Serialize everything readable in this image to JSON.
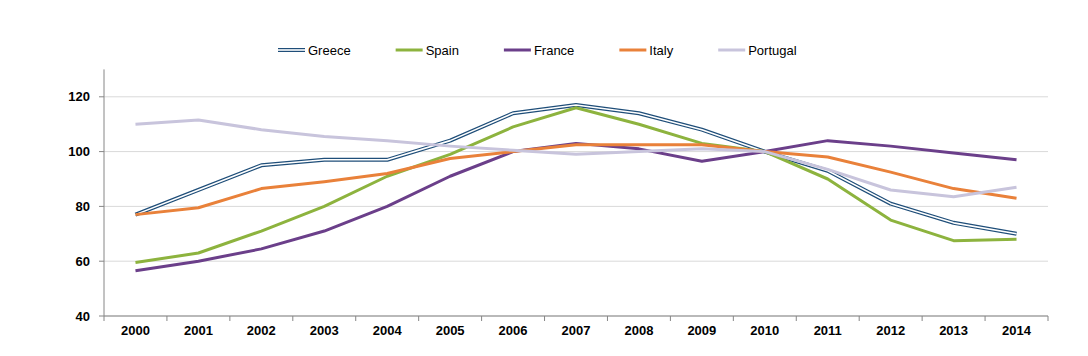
{
  "chart_data": {
    "type": "line",
    "categories": [
      "2000",
      "2001",
      "2002",
      "2003",
      "2004",
      "2005",
      "2006",
      "2007",
      "2008",
      "2009",
      "2010",
      "2011",
      "2012",
      "2013",
      "2014"
    ],
    "series": [
      {
        "name": "Greece",
        "color": "#1f4e79",
        "line_style": "double",
        "values": [
          77,
          86,
          95,
          97,
          97,
          104,
          114,
          117,
          114,
          108,
          100,
          93,
          81,
          74,
          70
        ]
      },
      {
        "name": "Spain",
        "color": "#8db33e",
        "values": [
          59.5,
          63,
          71,
          80,
          91,
          99,
          109,
          116,
          110,
          103,
          100,
          90,
          75,
          67.5,
          68
        ]
      },
      {
        "name": "France",
        "color": "#6b3f8a",
        "values": [
          56.5,
          60,
          64.5,
          71,
          80,
          91,
          100,
          103,
          101,
          96.5,
          100,
          104,
          102,
          99.5,
          97
        ]
      },
      {
        "name": "Italy",
        "color": "#e9813a",
        "values": [
          77,
          79.5,
          86.5,
          89,
          92,
          97.5,
          100,
          102.5,
          102.5,
          102.5,
          100,
          98,
          92.5,
          86.5,
          83
        ]
      },
      {
        "name": "Portugal",
        "color": "#c8c4dc",
        "values": [
          110,
          111.5,
          108,
          105.5,
          104,
          102,
          100.5,
          99,
          100,
          101,
          100,
          93.5,
          86,
          83.5,
          87
        ]
      }
    ],
    "ylim": [
      40,
      130
    ],
    "yticks": [
      40,
      60,
      80,
      100,
      120
    ],
    "grid": true,
    "legend": "top"
  }
}
